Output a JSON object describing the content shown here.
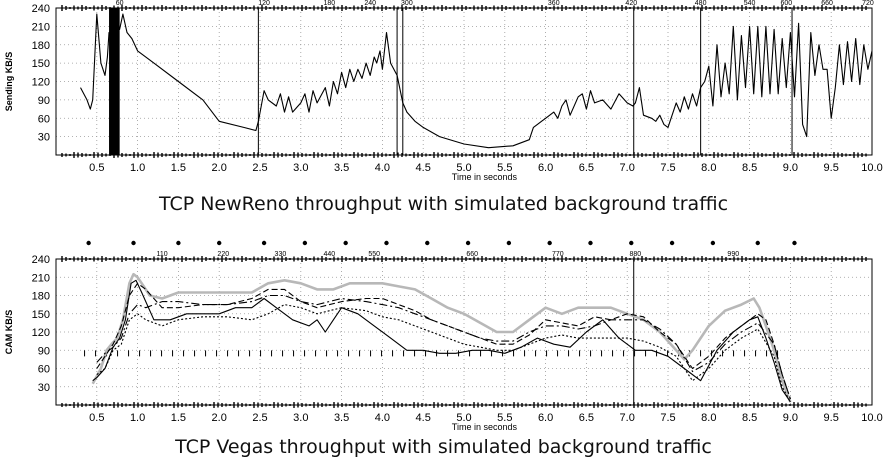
{
  "chart_data": [
    {
      "type": "line",
      "caption": "TCP NewReno throughput with simulated background traffic",
      "ylabel": "Sending KB/S",
      "xlabel": "Time in seconds",
      "xlim": [
        0,
        10
      ],
      "ylim": [
        0,
        240
      ],
      "xticks": [
        "0.5",
        "1.0",
        "1.5",
        "2.0",
        "2.5",
        "3.0",
        "3.5",
        "4.0",
        "4.5",
        "5.0",
        "5.5",
        "6.0",
        "6.5",
        "7.0",
        "7.5",
        "8.0",
        "8.5",
        "9.0",
        "9.5",
        "10.0"
      ],
      "yticks": [
        "30",
        "60",
        "90",
        "120",
        "150",
        "180",
        "210",
        "240"
      ],
      "top_labels": [
        {
          "x": 0.78,
          "text": "60"
        },
        {
          "x": 2.55,
          "text": "120"
        },
        {
          "x": 3.35,
          "text": "180"
        },
        {
          "x": 3.85,
          "text": "240"
        },
        {
          "x": 4.3,
          "text": "300"
        },
        {
          "x": 6.1,
          "text": "360"
        },
        {
          "x": 7.05,
          "text": "420"
        },
        {
          "x": 7.9,
          "text": "480"
        },
        {
          "x": 8.5,
          "text": "540"
        },
        {
          "x": 8.95,
          "text": "600"
        },
        {
          "x": 9.45,
          "text": "660"
        },
        {
          "x": 9.95,
          "text": "720"
        }
      ],
      "vlines": [
        2.48,
        4.18,
        4.25,
        7.08,
        7.9,
        9.02
      ],
      "block": [
        0.65,
        0.78
      ],
      "series": [
        {
          "name": "throughput",
          "color": "#000000",
          "width": 1.1,
          "x": [
            0.3,
            0.38,
            0.42,
            0.45,
            0.5,
            0.55,
            0.6,
            0.63,
            0.65,
            0.7,
            0.72,
            0.78,
            0.82,
            0.87,
            0.93,
            1.0,
            1.2,
            1.5,
            1.8,
            2.0,
            2.3,
            2.45,
            2.48,
            2.55,
            2.6,
            2.7,
            2.75,
            2.8,
            2.85,
            2.9,
            3.0,
            3.05,
            3.1,
            3.15,
            3.2,
            3.3,
            3.35,
            3.4,
            3.45,
            3.5,
            3.55,
            3.6,
            3.65,
            3.7,
            3.75,
            3.8,
            3.85,
            3.9,
            3.93,
            3.97,
            4.0,
            4.05,
            4.1,
            4.18,
            4.25,
            4.3,
            4.4,
            4.5,
            4.7,
            5.0,
            5.3,
            5.6,
            5.8,
            5.85,
            5.9,
            5.95,
            6.0,
            6.05,
            6.1,
            6.15,
            6.2,
            6.25,
            6.3,
            6.4,
            6.45,
            6.5,
            6.55,
            6.6,
            6.7,
            6.8,
            6.9,
            7.0,
            7.07,
            7.1,
            7.15,
            7.2,
            7.3,
            7.35,
            7.4,
            7.45,
            7.5,
            7.6,
            7.65,
            7.7,
            7.75,
            7.8,
            7.85,
            7.9,
            7.95,
            8.0,
            8.05,
            8.1,
            8.15,
            8.2,
            8.25,
            8.3,
            8.35,
            8.4,
            8.45,
            8.5,
            8.55,
            8.6,
            8.65,
            8.7,
            8.75,
            8.8,
            8.85,
            8.9,
            8.95,
            9.0,
            9.05,
            9.1,
            9.15,
            9.2,
            9.25,
            9.3,
            9.35,
            9.4,
            9.45,
            9.5,
            9.55,
            9.6,
            9.65,
            9.7,
            9.75,
            9.8,
            9.85,
            9.9,
            9.95,
            10.0
          ],
          "y": [
            110,
            90,
            75,
            90,
            230,
            150,
            130,
            160,
            200,
            180,
            220,
            205,
            230,
            200,
            190,
            170,
            150,
            120,
            90,
            55,
            45,
            40,
            55,
            105,
            90,
            80,
            100,
            70,
            95,
            70,
            85,
            100,
            70,
            105,
            85,
            110,
            80,
            120,
            100,
            135,
            110,
            140,
            120,
            140,
            125,
            150,
            130,
            160,
            150,
            170,
            140,
            200,
            150,
            130,
            85,
            70,
            55,
            45,
            30,
            18,
            12,
            15,
            25,
            45,
            50,
            55,
            60,
            65,
            70,
            60,
            80,
            90,
            65,
            95,
            100,
            75,
            105,
            85,
            90,
            75,
            100,
            85,
            80,
            85,
            110,
            65,
            60,
            55,
            65,
            50,
            45,
            85,
            70,
            95,
            75,
            100,
            80,
            110,
            120,
            145,
            80,
            180,
            95,
            150,
            100,
            210,
            90,
            195,
            110,
            210,
            100,
            210,
            95,
            210,
            100,
            205,
            100,
            190,
            110,
            200,
            95,
            215,
            50,
            30,
            200,
            130,
            180,
            140,
            140,
            60,
            110,
            180,
            115,
            185,
            120,
            190,
            115,
            180,
            140,
            170
          ]
        }
      ]
    },
    {
      "type": "line",
      "caption": "TCP Vegas throughput with simulated background traffic",
      "ylabel": "CAM KB/S",
      "xlabel": "Time in seconds",
      "xlim": [
        0,
        10
      ],
      "ylim": [
        0,
        240
      ],
      "xticks": [
        "0.5",
        "1.0",
        "1.5",
        "2.0",
        "2.5",
        "3.0",
        "3.5",
        "4.0",
        "4.5",
        "5.0",
        "5.5",
        "6.0",
        "6.5",
        "7.0",
        "7.5",
        "8.0",
        "8.5",
        "9.0",
        "9.5",
        "10.0"
      ],
      "yticks": [
        "30",
        "60",
        "90",
        "120",
        "150",
        "180",
        "210",
        "240"
      ],
      "top_labels": [
        {
          "x": 1.3,
          "text": "110"
        },
        {
          "x": 2.05,
          "text": "220"
        },
        {
          "x": 2.75,
          "text": "330"
        },
        {
          "x": 3.35,
          "text": "440"
        },
        {
          "x": 3.9,
          "text": "550"
        },
        {
          "x": 5.1,
          "text": "660"
        },
        {
          "x": 6.15,
          "text": "770"
        },
        {
          "x": 7.1,
          "text": "880"
        },
        {
          "x": 8.3,
          "text": "990"
        }
      ],
      "vlines": [
        7.08
      ],
      "dots": [
        0.4,
        0.95,
        1.5,
        2.0,
        2.55,
        3.05,
        3.55,
        4.05,
        4.55,
        5.05,
        5.55,
        6.05,
        6.55,
        7.05,
        7.55,
        8.05,
        8.6,
        9.05
      ],
      "series": [
        {
          "name": "aggregate",
          "color": "#b8b8b8",
          "width": 2.6,
          "x": [
            0.45,
            0.55,
            0.62,
            0.68,
            0.75,
            0.82,
            0.9,
            0.95,
            1.0,
            1.05,
            1.15,
            1.3,
            1.5,
            1.8,
            2.1,
            2.4,
            2.6,
            2.8,
            3.0,
            3.2,
            3.4,
            3.6,
            3.8,
            4.0,
            4.2,
            4.4,
            4.6,
            4.8,
            5.0,
            5.2,
            5.4,
            5.6,
            5.8,
            6.0,
            6.2,
            6.4,
            6.6,
            6.8,
            7.0,
            7.2,
            7.4,
            7.6,
            7.7,
            7.8,
            8.0,
            8.2,
            8.4,
            8.55,
            8.62,
            8.7,
            8.8,
            8.9,
            9.0
          ],
          "y": [
            35,
            60,
            90,
            100,
            110,
            140,
            200,
            215,
            210,
            200,
            180,
            175,
            185,
            185,
            185,
            185,
            200,
            205,
            200,
            190,
            190,
            200,
            200,
            200,
            195,
            190,
            175,
            160,
            150,
            135,
            120,
            120,
            140,
            160,
            150,
            160,
            160,
            160,
            150,
            140,
            120,
            90,
            75,
            90,
            130,
            155,
            165,
            175,
            160,
            130,
            90,
            40,
            5
          ]
        },
        {
          "name": "flow-1",
          "color": "#000000",
          "width": 1.1,
          "dash": "",
          "x": [
            0.45,
            0.5,
            0.6,
            0.7,
            0.78,
            0.85,
            0.92,
            0.98,
            1.05,
            1.2,
            1.4,
            1.6,
            1.8,
            2.0,
            2.2,
            2.4,
            2.55,
            2.7,
            2.9,
            3.1,
            3.2,
            3.3,
            3.4,
            3.5,
            3.7,
            3.9,
            4.1,
            4.3,
            4.5,
            4.7,
            4.9,
            5.1,
            5.3,
            5.5,
            5.7,
            5.9,
            6.1,
            6.3,
            6.5,
            6.7,
            6.9,
            7.1,
            7.3,
            7.5,
            7.7,
            7.9,
            8.1,
            8.3,
            8.5,
            8.6,
            8.7,
            8.8,
            8.9,
            9.0
          ],
          "y": [
            40,
            45,
            60,
            95,
            110,
            140,
            200,
            205,
            185,
            140,
            140,
            150,
            150,
            150,
            160,
            160,
            175,
            160,
            140,
            130,
            140,
            120,
            140,
            160,
            150,
            130,
            110,
            90,
            90,
            85,
            85,
            90,
            90,
            85,
            95,
            110,
            100,
            95,
            120,
            140,
            110,
            90,
            90,
            80,
            60,
            40,
            90,
            120,
            140,
            145,
            110,
            70,
            25,
            5
          ]
        },
        {
          "name": "flow-2",
          "color": "#000000",
          "width": 1.1,
          "dash": "6,3",
          "x": [
            0.5,
            0.6,
            0.7,
            0.8,
            0.9,
            1.0,
            1.1,
            1.3,
            1.5,
            1.8,
            2.1,
            2.4,
            2.6,
            2.8,
            3.0,
            3.2,
            3.5,
            3.8,
            4.0,
            4.2,
            4.4,
            4.6,
            4.8,
            5.0,
            5.2,
            5.4,
            5.6,
            5.8,
            6.0,
            6.2,
            6.4,
            6.6,
            6.8,
            7.0,
            7.2,
            7.4,
            7.6,
            7.8,
            8.0,
            8.2,
            8.4,
            8.6,
            8.7,
            8.8,
            8.9,
            9.0
          ],
          "y": [
            60,
            80,
            100,
            130,
            180,
            200,
            190,
            160,
            160,
            165,
            165,
            175,
            190,
            190,
            170,
            160,
            170,
            175,
            175,
            165,
            155,
            140,
            130,
            120,
            110,
            100,
            100,
            115,
            140,
            135,
            130,
            145,
            140,
            150,
            145,
            120,
            100,
            60,
            80,
            110,
            130,
            150,
            140,
            100,
            50,
            10
          ]
        },
        {
          "name": "flow-3",
          "color": "#000000",
          "width": 1.1,
          "dash": "2,2",
          "x": [
            0.5,
            0.6,
            0.7,
            0.8,
            0.9,
            1.0,
            1.1,
            1.3,
            1.5,
            1.8,
            2.1,
            2.4,
            2.6,
            2.8,
            3.0,
            3.2,
            3.5,
            3.8,
            4.0,
            4.2,
            4.4,
            4.6,
            4.8,
            5.0,
            5.2,
            5.4,
            5.6,
            5.8,
            6.0,
            6.2,
            6.4,
            6.6,
            6.8,
            7.0,
            7.2,
            7.4,
            7.6,
            7.8,
            8.0,
            8.2,
            8.4,
            8.6,
            8.8,
            8.9,
            9.0
          ],
          "y": [
            50,
            60,
            90,
            100,
            140,
            150,
            140,
            130,
            140,
            145,
            145,
            140,
            150,
            165,
            160,
            150,
            160,
            155,
            145,
            140,
            130,
            120,
            110,
            100,
            95,
            90,
            90,
            100,
            110,
            115,
            110,
            110,
            110,
            110,
            105,
            95,
            80,
            40,
            60,
            90,
            110,
            125,
            80,
            30,
            5
          ]
        },
        {
          "name": "flow-4",
          "color": "#000000",
          "width": 1.1,
          "dash": "8,3,2,3",
          "x": [
            0.5,
            0.6,
            0.7,
            0.8,
            0.9,
            1.0,
            1.1,
            1.3,
            1.5,
            1.8,
            2.1,
            2.4,
            2.6,
            2.8,
            3.0,
            3.2,
            3.5,
            3.8,
            4.0,
            4.2,
            4.4,
            4.6,
            4.8,
            5.0,
            5.2,
            5.4,
            5.6,
            5.8,
            6.0,
            6.2,
            6.4,
            6.6,
            6.8,
            7.0,
            7.2,
            7.4,
            7.6,
            7.8,
            8.0,
            8.2,
            8.4,
            8.6,
            8.8,
            8.9,
            9.0
          ],
          "y": [
            70,
            85,
            95,
            110,
            150,
            165,
            160,
            170,
            170,
            165,
            165,
            170,
            180,
            180,
            170,
            165,
            175,
            170,
            165,
            160,
            150,
            140,
            130,
            120,
            110,
            105,
            105,
            120,
            130,
            130,
            125,
            130,
            140,
            140,
            140,
            125,
            100,
            55,
            70,
            100,
            120,
            135,
            100,
            50,
            10
          ]
        }
      ]
    }
  ]
}
